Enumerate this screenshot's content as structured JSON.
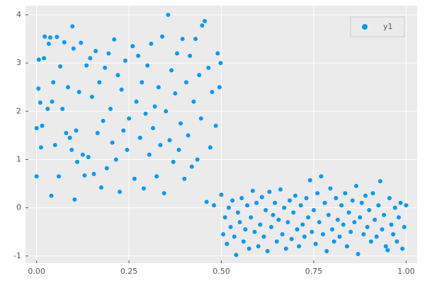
{
  "chart_data": {
    "type": "scatter",
    "series": [
      {
        "name": "y1",
        "color": "#009af9",
        "x": [
          0.0,
          0.0,
          0.005,
          0.006,
          0.01,
          0.012,
          0.015,
          0.02,
          0.022,
          0.03,
          0.033,
          0.037,
          0.04,
          0.042,
          0.045,
          0.05,
          0.055,
          0.06,
          0.064,
          0.07,
          0.075,
          0.08,
          0.085,
          0.09,
          0.095,
          0.097,
          0.1,
          0.103,
          0.107,
          0.11,
          0.115,
          0.12,
          0.125,
          0.13,
          0.135,
          0.14,
          0.145,
          0.15,
          0.155,
          0.16,
          0.165,
          0.17,
          0.175,
          0.18,
          0.185,
          0.19,
          0.195,
          0.2,
          0.205,
          0.21,
          0.215,
          0.22,
          0.225,
          0.23,
          0.235,
          0.24,
          0.245,
          0.25,
          0.26,
          0.265,
          0.27,
          0.275,
          0.28,
          0.285,
          0.29,
          0.295,
          0.3,
          0.305,
          0.31,
          0.315,
          0.32,
          0.325,
          0.33,
          0.335,
          0.34,
          0.345,
          0.35,
          0.356,
          0.36,
          0.365,
          0.37,
          0.375,
          0.38,
          0.385,
          0.39,
          0.395,
          0.4,
          0.405,
          0.41,
          0.415,
          0.42,
          0.425,
          0.43,
          0.435,
          0.44,
          0.445,
          0.448,
          0.455,
          0.46,
          0.465,
          0.47,
          0.475,
          0.48,
          0.485,
          0.49,
          0.495,
          0.498,
          0.5,
          0.505,
          0.51,
          0.515,
          0.52,
          0.525,
          0.53,
          0.535,
          0.54,
          0.545,
          0.55,
          0.555,
          0.56,
          0.565,
          0.57,
          0.575,
          0.58,
          0.585,
          0.59,
          0.595,
          0.6,
          0.605,
          0.61,
          0.615,
          0.62,
          0.625,
          0.63,
          0.635,
          0.64,
          0.645,
          0.65,
          0.655,
          0.66,
          0.665,
          0.67,
          0.675,
          0.68,
          0.685,
          0.69,
          0.695,
          0.7,
          0.705,
          0.71,
          0.715,
          0.72,
          0.725,
          0.73,
          0.735,
          0.74,
          0.745,
          0.75,
          0.755,
          0.76,
          0.765,
          0.77,
          0.775,
          0.78,
          0.785,
          0.79,
          0.795,
          0.8,
          0.805,
          0.81,
          0.815,
          0.82,
          0.825,
          0.83,
          0.835,
          0.84,
          0.845,
          0.85,
          0.855,
          0.86,
          0.865,
          0.87,
          0.875,
          0.88,
          0.885,
          0.89,
          0.895,
          0.9,
          0.905,
          0.91,
          0.915,
          0.92,
          0.925,
          0.93,
          0.935,
          0.94,
          0.945,
          0.95,
          0.955,
          0.96,
          0.965,
          0.97,
          0.975,
          0.98,
          0.985,
          0.99,
          0.995,
          1.0
        ],
        "values": [
          0.65,
          1.65,
          2.47,
          3.07,
          2.18,
          1.25,
          1.7,
          3.1,
          3.55,
          2.05,
          3.4,
          3.53,
          0.25,
          2.2,
          2.6,
          1.3,
          3.54,
          0.65,
          2.93,
          2.05,
          3.43,
          1.55,
          2.5,
          1.45,
          1.2,
          3.76,
          3.3,
          0.17,
          1.6,
          0.95,
          2.4,
          3.42,
          1.1,
          0.67,
          2.95,
          1.05,
          3.1,
          2.3,
          0.7,
          3.25,
          1.55,
          2.6,
          0.42,
          1.8,
          2.9,
          0.82,
          3.2,
          2.05,
          1.35,
          3.49,
          1.0,
          2.75,
          0.33,
          2.45,
          1.6,
          3.05,
          1.2,
          1.85,
          3.35,
          0.6,
          2.2,
          3.15,
          1.45,
          2.6,
          0.4,
          1.95,
          2.95,
          1.1,
          3.4,
          1.65,
          2.1,
          0.65,
          2.5,
          1.3,
          3.55,
          0.3,
          2.0,
          4.0,
          1.4,
          2.85,
          0.95,
          2.37,
          3.2,
          1.2,
          1.75,
          3.5,
          0.6,
          2.6,
          1.5,
          3.15,
          0.85,
          2.2,
          3.5,
          1.0,
          2.75,
          1.85,
          3.78,
          3.87,
          0.12,
          2.9,
          1.25,
          2.4,
          0.05,
          1.7,
          3.2,
          2.5,
          3.0,
          0.27,
          -0.55,
          -0.2,
          -0.75,
          0.0,
          -0.4,
          0.15,
          -0.6,
          -0.98,
          -0.1,
          -0.3,
          0.2,
          -0.7,
          -0.45,
          0.05,
          -0.85,
          -0.2,
          0.35,
          -0.5,
          0.1,
          -0.8,
          -0.35,
          0.22,
          -0.6,
          -0.05,
          -0.9,
          0.33,
          -0.4,
          -0.15,
          0.1,
          -0.7,
          -0.25,
          0.38,
          -0.55,
          0.0,
          -0.85,
          -0.3,
          0.15,
          -0.65,
          -0.1,
          0.25,
          -0.45,
          -0.8,
          0.05,
          -0.35,
          -0.6,
          0.2,
          -0.2,
          0.57,
          -0.5,
          -0.05,
          -0.75,
          0.3,
          -0.3,
          0.65,
          -0.55,
          0.1,
          -0.9,
          -0.15,
          0.4,
          -0.45,
          -0.7,
          0.2,
          -0.25,
          -0.6,
          0.05,
          -0.35,
          0.3,
          -0.8,
          -0.1,
          -0.5,
          0.15,
          -0.3,
          0.45,
          -0.96,
          -0.2,
          0.1,
          -0.55,
          0.25,
          -0.4,
          -0.05,
          -0.7,
          0.3,
          -0.25,
          -0.6,
          0.05,
          0.55,
          -0.45,
          -0.15,
          -0.8,
          -0.88,
          0.2,
          -0.35,
          -0.55,
          0.0,
          -0.7,
          -0.2,
          0.1,
          -0.85,
          -0.4,
          0.05
        ]
      }
    ],
    "xlim": [
      -0.03,
      1.03
    ],
    "ylim": [
      -1.15,
      4.19
    ],
    "xticks": [
      {
        "value": 0,
        "label": "0.00"
      },
      {
        "value": 0.25,
        "label": "0.25"
      },
      {
        "value": 0.5,
        "label": "0.50"
      },
      {
        "value": 0.75,
        "label": "0.75"
      },
      {
        "value": 1,
        "label": "1.00"
      }
    ],
    "yticks": [
      -1,
      0,
      1,
      2,
      3,
      4
    ],
    "grid": true,
    "legend": "top-right"
  }
}
